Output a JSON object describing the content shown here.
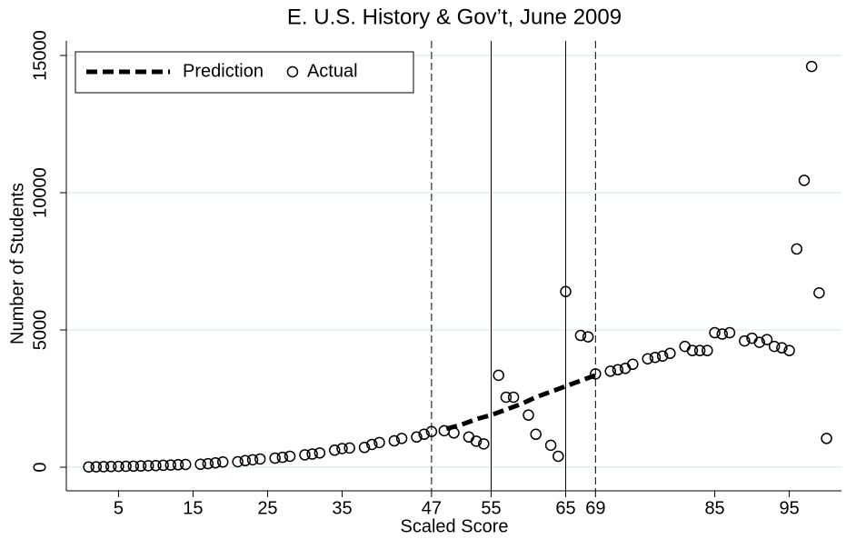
{
  "chart_data": {
    "type": "scatter",
    "title": "E. U.S. History & Gov’t, June 2009",
    "x_label": "Scaled Score",
    "y_label": "Number of Students",
    "xlim": [
      -2,
      102
    ],
    "ylim": [
      -860,
      15530
    ],
    "xticks": [
      5,
      15,
      25,
      35,
      47,
      55,
      65,
      69,
      85,
      95
    ],
    "yticks": [
      0,
      5000,
      10000,
      15000
    ],
    "grid": true,
    "legend": "top-left",
    "vlines": [
      {
        "value": 47,
        "style": "dashed"
      },
      {
        "value": 55,
        "style": "solid"
      },
      {
        "value": 65,
        "style": "solid"
      },
      {
        "value": 69,
        "style": "dashed"
      }
    ],
    "series": [
      {
        "name": "Prediction",
        "type": "line",
        "color": "#000000",
        "x": [
          49,
          51,
          53,
          55,
          57,
          59,
          61,
          63,
          65,
          67,
          69
        ],
        "values": [
          1400,
          1550,
          1750,
          1900,
          2100,
          2300,
          2550,
          2750,
          2950,
          3150,
          3350
        ]
      },
      {
        "name": "Actual",
        "type": "scatter",
        "color": "#000000",
        "x": [
          1,
          2,
          3,
          4,
          5,
          6,
          7,
          8,
          9,
          10,
          11,
          12,
          13,
          14,
          16,
          17,
          18,
          19,
          21,
          22,
          23,
          24,
          26,
          27,
          28,
          30,
          31,
          32,
          34,
          35,
          36,
          38,
          39,
          40,
          42,
          43,
          45,
          46,
          47,
          48.7,
          50,
          52,
          53,
          54,
          56,
          57,
          58,
          60,
          61,
          63,
          64,
          65,
          67,
          68,
          69,
          71,
          72,
          73,
          74,
          76,
          77,
          78,
          79,
          81,
          82,
          83,
          84,
          85,
          86,
          87,
          89,
          90,
          91,
          92,
          93,
          94,
          95,
          96,
          97,
          98,
          99,
          100
        ],
        "values": [
          10,
          15,
          20,
          25,
          30,
          35,
          40,
          45,
          55,
          60,
          70,
          80,
          90,
          100,
          110,
          130,
          160,
          190,
          200,
          240,
          270,
          300,
          330,
          360,
          400,
          450,
          480,
          520,
          620,
          680,
          700,
          720,
          830,
          900,
          960,
          1050,
          1100,
          1200,
          1300,
          1330,
          1250,
          1100,
          950,
          850,
          3350,
          2550,
          2550,
          1900,
          1200,
          800,
          400,
          6400,
          4800,
          4750,
          3400,
          3500,
          3550,
          3600,
          3750,
          3950,
          4000,
          4050,
          4150,
          4400,
          4250,
          4250,
          4250,
          4900,
          4850,
          4900,
          4600,
          4700,
          4550,
          4650,
          4400,
          4350,
          4250,
          7950,
          10450,
          14600,
          6350,
          1050
        ]
      }
    ]
  }
}
